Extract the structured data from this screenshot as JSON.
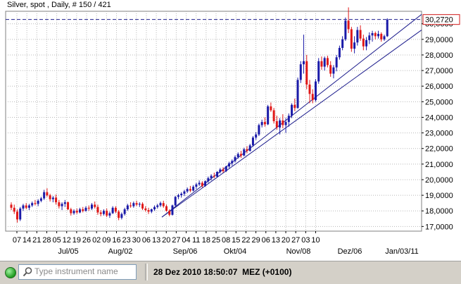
{
  "header": {
    "title": "Silver, spot , Daily, # 150 / 421"
  },
  "price_label": "30,2720",
  "status": {
    "search_placeholder": "Type instrument name",
    "datetime": "28 Dez 2010 18:50:07  MEZ (+0100)"
  },
  "colors": {
    "up": "#1a1aa8",
    "down": "#e01818",
    "trendline": "#1c1c8c",
    "grid": "#b8b8b8",
    "price_line": "#1c1c8c",
    "price_box": "#d01818"
  },
  "chart_data": {
    "type": "candlestick",
    "title": "Silver, spot , Daily, # 150 / 421",
    "ylim": [
      16.7,
      30.8
    ],
    "y_ticks": [
      "17,0000",
      "18,0000",
      "19,0000",
      "20,0000",
      "21,0000",
      "22,0000",
      "23,0000",
      "24,0000",
      "25,0000",
      "26,0000",
      "27,0000",
      "28,0000",
      "29,0000",
      "30,0000"
    ],
    "x_ticks": [
      "07",
      "14",
      "21",
      "28",
      "05",
      "12",
      "19",
      "26",
      "02",
      "09",
      "16",
      "23",
      "30",
      "06",
      "13",
      "20",
      "27",
      "04",
      "11",
      "18",
      "25",
      "08",
      "15",
      "22",
      "29",
      "06",
      "13",
      "20",
      "27",
      "03",
      "10"
    ],
    "month_labels": [
      "Jul/05",
      "Aug/02",
      "Sep/06",
      "Okt/04",
      "Nov/08",
      "Dez/06",
      "Jan/03/11"
    ],
    "last_price": 30.272,
    "grid": true,
    "candles": [
      [
        18.4,
        18.55,
        18.05,
        18.2
      ],
      [
        18.2,
        18.4,
        17.8,
        17.95
      ],
      [
        17.95,
        18.1,
        17.25,
        17.45
      ],
      [
        17.45,
        18.25,
        17.35,
        18.15
      ],
      [
        18.15,
        18.45,
        18.0,
        18.35
      ],
      [
        18.35,
        18.5,
        18.1,
        18.2
      ],
      [
        18.2,
        18.45,
        18.05,
        18.35
      ],
      [
        18.35,
        18.6,
        18.25,
        18.5
      ],
      [
        18.5,
        18.7,
        18.35,
        18.45
      ],
      [
        18.45,
        18.75,
        18.3,
        18.65
      ],
      [
        18.65,
        18.9,
        18.55,
        18.8
      ],
      [
        18.8,
        19.35,
        18.7,
        19.2
      ],
      [
        19.2,
        19.45,
        18.9,
        19.0
      ],
      [
        19.0,
        19.1,
        18.6,
        18.75
      ],
      [
        18.75,
        18.95,
        18.55,
        18.85
      ],
      [
        18.85,
        19.05,
        18.4,
        18.55
      ],
      [
        18.55,
        18.7,
        18.15,
        18.3
      ],
      [
        18.3,
        18.55,
        18.05,
        18.45
      ],
      [
        18.45,
        18.7,
        18.25,
        18.55
      ],
      [
        18.55,
        18.6,
        18.05,
        18.1
      ],
      [
        18.1,
        18.2,
        17.7,
        17.85
      ],
      [
        17.85,
        18.1,
        17.75,
        18.0
      ],
      [
        18.0,
        18.15,
        17.8,
        17.9
      ],
      [
        17.9,
        18.2,
        17.85,
        18.1
      ],
      [
        18.1,
        18.25,
        17.9,
        18.0
      ],
      [
        18.0,
        18.3,
        17.95,
        18.2
      ],
      [
        18.2,
        18.35,
        18.0,
        18.15
      ],
      [
        18.15,
        18.5,
        18.05,
        18.4
      ],
      [
        18.4,
        18.6,
        18.15,
        18.25
      ],
      [
        18.25,
        18.4,
        17.75,
        17.9
      ],
      [
        17.9,
        18.05,
        17.65,
        17.8
      ],
      [
        17.8,
        18.1,
        17.7,
        18.0
      ],
      [
        18.0,
        18.15,
        17.6,
        17.7
      ],
      [
        17.7,
        17.95,
        17.55,
        17.85
      ],
      [
        17.85,
        18.3,
        17.8,
        18.2
      ],
      [
        18.2,
        18.3,
        17.85,
        17.95
      ],
      [
        17.95,
        18.05,
        17.4,
        17.55
      ],
      [
        17.55,
        17.9,
        17.45,
        17.8
      ],
      [
        17.8,
        18.2,
        17.7,
        18.1
      ],
      [
        18.1,
        18.45,
        18.0,
        18.35
      ],
      [
        18.35,
        18.55,
        18.2,
        18.3
      ],
      [
        18.3,
        18.6,
        18.2,
        18.5
      ],
      [
        18.5,
        18.65,
        18.3,
        18.4
      ],
      [
        18.4,
        18.55,
        18.25,
        18.45
      ],
      [
        18.45,
        18.55,
        18.05,
        18.15
      ],
      [
        18.15,
        18.3,
        17.95,
        18.05
      ],
      [
        18.05,
        18.2,
        17.8,
        17.95
      ],
      [
        17.95,
        18.15,
        17.85,
        18.1
      ],
      [
        18.1,
        18.35,
        18.0,
        18.25
      ],
      [
        18.25,
        18.45,
        18.15,
        18.35
      ],
      [
        18.35,
        18.6,
        18.25,
        18.5
      ],
      [
        18.5,
        18.65,
        18.2,
        18.3
      ],
      [
        18.3,
        18.4,
        17.95,
        18.0
      ],
      [
        18.0,
        18.1,
        17.65,
        17.75
      ],
      [
        17.75,
        18.4,
        17.7,
        18.35
      ],
      [
        18.35,
        18.95,
        18.3,
        18.9
      ],
      [
        18.9,
        19.1,
        18.75,
        19.0
      ],
      [
        19.0,
        19.2,
        18.85,
        19.1
      ],
      [
        19.1,
        19.35,
        18.95,
        19.25
      ],
      [
        19.25,
        19.5,
        19.15,
        19.4
      ],
      [
        19.4,
        19.6,
        19.2,
        19.3
      ],
      [
        19.3,
        19.65,
        19.25,
        19.55
      ],
      [
        19.55,
        19.8,
        19.4,
        19.7
      ],
      [
        19.7,
        19.95,
        19.6,
        19.8
      ],
      [
        19.8,
        19.9,
        19.5,
        19.6
      ],
      [
        19.6,
        19.95,
        19.55,
        19.9
      ],
      [
        19.9,
        20.2,
        19.8,
        20.1
      ],
      [
        20.1,
        20.35,
        19.95,
        20.25
      ],
      [
        20.25,
        20.45,
        20.1,
        20.2
      ],
      [
        20.2,
        20.55,
        20.15,
        20.5
      ],
      [
        20.5,
        20.75,
        20.4,
        20.65
      ],
      [
        20.65,
        20.8,
        20.45,
        20.55
      ],
      [
        20.55,
        20.9,
        20.5,
        20.85
      ],
      [
        20.85,
        21.15,
        20.75,
        21.05
      ],
      [
        21.05,
        21.3,
        20.9,
        21.2
      ],
      [
        21.2,
        21.55,
        21.1,
        21.45
      ],
      [
        21.45,
        21.75,
        21.35,
        21.65
      ],
      [
        21.65,
        21.85,
        21.4,
        21.55
      ],
      [
        21.55,
        22.05,
        21.5,
        21.95
      ],
      [
        21.95,
        22.15,
        21.7,
        21.85
      ],
      [
        21.85,
        22.3,
        21.8,
        22.2
      ],
      [
        22.2,
        22.8,
        22.1,
        22.7
      ],
      [
        22.7,
        23.05,
        22.55,
        22.9
      ],
      [
        22.9,
        23.6,
        22.8,
        23.5
      ],
      [
        23.5,
        23.85,
        23.35,
        23.7
      ],
      [
        23.7,
        24.0,
        23.4,
        23.55
      ],
      [
        23.55,
        24.8,
        23.5,
        24.7
      ],
      [
        24.7,
        24.95,
        24.35,
        24.45
      ],
      [
        24.45,
        24.6,
        23.6,
        23.75
      ],
      [
        23.75,
        24.1,
        23.2,
        23.35
      ],
      [
        23.35,
        23.95,
        22.9,
        23.8
      ],
      [
        23.8,
        24.2,
        23.3,
        23.5
      ],
      [
        23.5,
        23.95,
        23.0,
        23.7
      ],
      [
        23.7,
        24.25,
        23.4,
        24.1
      ],
      [
        24.1,
        24.9,
        23.95,
        24.8
      ],
      [
        24.8,
        25.2,
        24.4,
        24.6
      ],
      [
        24.6,
        26.55,
        24.55,
        26.4
      ],
      [
        26.4,
        27.6,
        26.2,
        27.4
      ],
      [
        27.4,
        29.3,
        26.8,
        27.6
      ],
      [
        27.6,
        28.0,
        25.8,
        26.1
      ],
      [
        26.1,
        26.4,
        24.9,
        25.5
      ],
      [
        25.5,
        25.8,
        24.9,
        25.1
      ],
      [
        25.1,
        26.45,
        25.0,
        26.3
      ],
      [
        26.3,
        27.8,
        26.15,
        27.6
      ],
      [
        27.6,
        27.9,
        27.05,
        27.25
      ],
      [
        27.25,
        27.9,
        27.0,
        27.8
      ],
      [
        27.8,
        27.95,
        27.2,
        27.35
      ],
      [
        27.35,
        27.6,
        26.6,
        26.8
      ],
      [
        26.8,
        27.35,
        26.5,
        27.2
      ],
      [
        27.2,
        28.0,
        26.95,
        27.85
      ],
      [
        27.85,
        28.6,
        27.7,
        28.45
      ],
      [
        28.45,
        29.2,
        28.3,
        29.0
      ],
      [
        29.0,
        30.4,
        28.9,
        30.2
      ],
      [
        30.2,
        31.05,
        29.4,
        29.65
      ],
      [
        29.65,
        29.8,
        28.2,
        28.4
      ],
      [
        28.4,
        29.2,
        28.1,
        28.8
      ],
      [
        28.8,
        29.8,
        28.6,
        29.6
      ],
      [
        29.6,
        29.9,
        28.9,
        29.05
      ],
      [
        29.05,
        29.3,
        28.3,
        28.55
      ],
      [
        28.55,
        29.15,
        28.3,
        28.95
      ],
      [
        28.95,
        29.45,
        28.7,
        29.25
      ],
      [
        29.25,
        29.55,
        28.85,
        29.4
      ],
      [
        29.4,
        29.5,
        29.0,
        29.2
      ],
      [
        29.2,
        29.55,
        29.05,
        29.35
      ],
      [
        29.35,
        29.45,
        28.85,
        29.0
      ],
      [
        29.0,
        29.3,
        28.9,
        29.2
      ],
      [
        29.2,
        30.35,
        29.15,
        30.27
      ]
    ]
  }
}
